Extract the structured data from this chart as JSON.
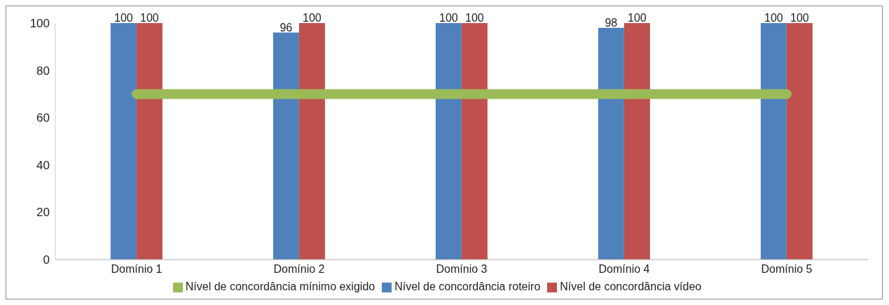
{
  "chart_data": {
    "type": "bar",
    "categories": [
      "Domínio 1",
      "Domínio 2",
      "Domínio 3",
      "Domínio 4",
      "Domínio 5"
    ],
    "series": [
      {
        "name": "Nível de concordância roteiro",
        "color": "#4f81bd",
        "values": [
          100,
          96,
          100,
          98,
          100
        ],
        "value_labels": [
          "100",
          "96",
          "100",
          "98",
          "100"
        ]
      },
      {
        "name": "Nível de concordância vídeo",
        "color": "#c0504d",
        "values": [
          100,
          100,
          100,
          100,
          100
        ],
        "value_labels": [
          "100",
          "100",
          "100",
          "100",
          "100"
        ]
      },
      {
        "name": "Nível de concordância mínimo exigido",
        "type": "line",
        "color": "#9bbb59",
        "values": [
          70,
          70,
          70,
          70,
          70
        ]
      }
    ],
    "ylim": [
      0,
      100
    ],
    "yticks": [
      0,
      20,
      40,
      60,
      80,
      100
    ],
    "grid": false,
    "legend": "bottom",
    "marker": "none"
  }
}
